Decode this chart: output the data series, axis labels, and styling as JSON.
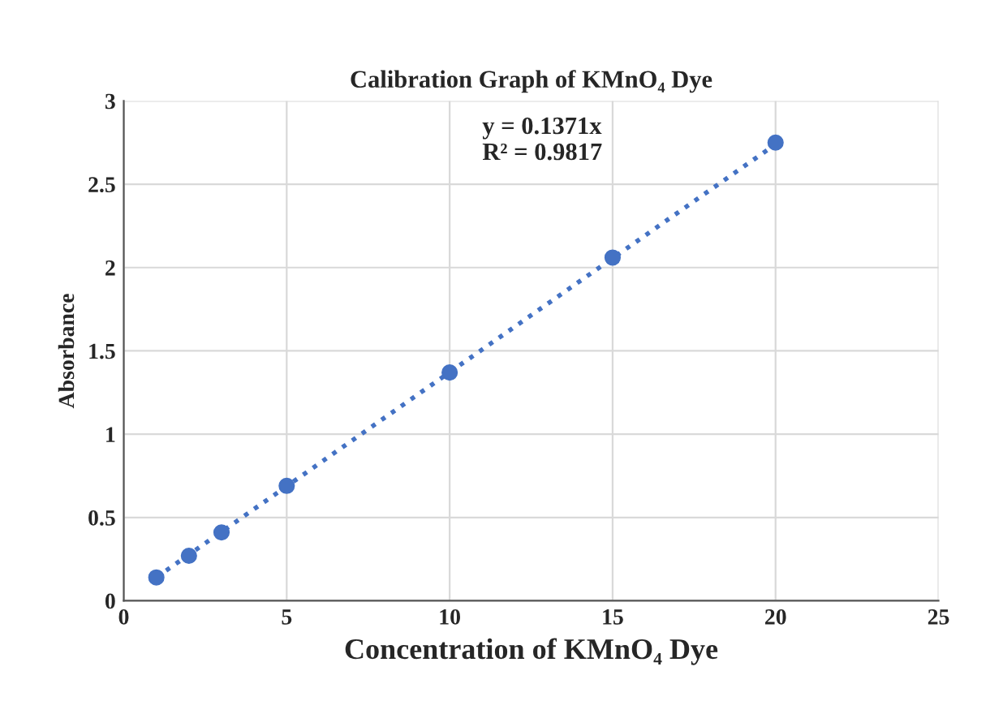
{
  "chart_data": {
    "type": "scatter",
    "title": "Calibration Graph of KMnO₄ Dye",
    "xlabel": "Concentration of KMnO₄ Dye",
    "ylabel": "Absorbance",
    "series": [
      {
        "color": "#4472c4",
        "x": [
          1,
          2,
          3,
          5,
          10,
          15,
          20
        ],
        "values": [
          0.14,
          0.27,
          0.41,
          0.69,
          1.37,
          2.06,
          2.75
        ],
        "marker": "circle"
      },
      {
        "type": "line",
        "color": "#4472c4",
        "x": [
          1,
          20
        ],
        "values": [
          0.14,
          2.74
        ],
        "line_style": "dotted"
      }
    ],
    "annotations": [
      "y = 0.1371x\nR² = 0.9817"
    ],
    "xlim": [
      0,
      25
    ],
    "xticks": [
      0,
      5,
      10,
      15,
      20,
      25
    ],
    "ylim": [
      0,
      3
    ],
    "yticks": [
      0,
      0.5,
      1,
      1.5,
      2,
      2.5,
      3
    ],
    "grid": true
  }
}
